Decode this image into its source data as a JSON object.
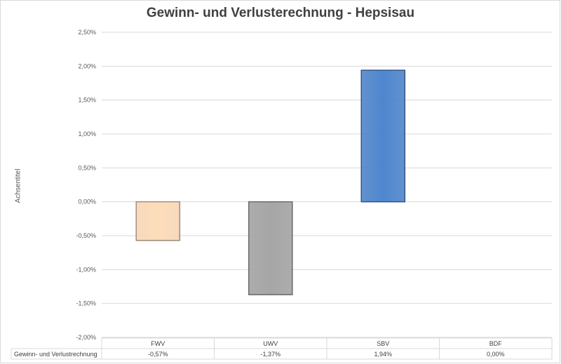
{
  "chart_data": {
    "type": "bar",
    "title": "Gewinn- und Verlusterechnung - Hepsisau",
    "ylabel": "Achsentitel",
    "xlabel": "",
    "ylim": [
      -2.0,
      2.5
    ],
    "yticks": [
      "2,50%",
      "2,00%",
      "1,50%",
      "1,00%",
      "0,50%",
      "0,00%",
      "-0,50%",
      "-1,00%",
      "-1,50%",
      "-2,00%"
    ],
    "ytick_values": [
      2.5,
      2.0,
      1.5,
      1.0,
      0.5,
      0.0,
      -0.5,
      -1.0,
      -1.5,
      -2.0
    ],
    "categories": [
      "FWV",
      "UWV",
      "SBV",
      "BDF"
    ],
    "series": [
      {
        "name": "Gewinn- und Verlustrechnung",
        "values": [
          -0.57,
          -1.37,
          1.94,
          0.0
        ],
        "labels": [
          "-0,57%",
          "-1,37%",
          "1,94%",
          "0,00%"
        ]
      }
    ],
    "bar_colors": [
      "#fddcba",
      "#a6a6a6",
      "#4f86cf",
      "#4f86cf"
    ],
    "grid": true,
    "legend": "data-table"
  }
}
